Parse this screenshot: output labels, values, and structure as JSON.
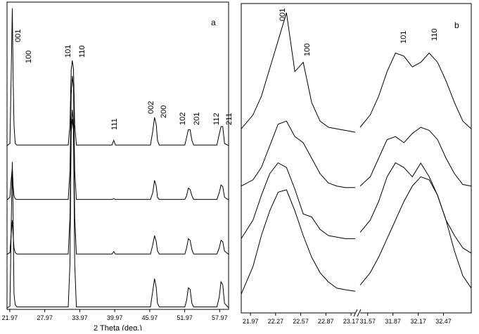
{
  "chart_data": [
    {
      "type": "line",
      "panel_label": "a",
      "xlabel": "2 Theta (deg.)",
      "xlim": [
        21.5,
        59.5
      ],
      "ylim": [
        0,
        100
      ],
      "xticks": [
        21.97,
        27.97,
        33.97,
        39.97,
        45.97,
        51.97,
        57.97
      ],
      "annotations": [
        "001",
        "100",
        "101",
        "110",
        "111",
        "002",
        "200",
        "102",
        "201",
        "112",
        "211"
      ],
      "x": [
        21.5,
        22.0,
        22.2,
        22.4,
        22.55,
        22.7,
        22.9,
        23.2,
        28.0,
        32.0,
        32.3,
        32.5,
        32.7,
        32.9,
        33.1,
        33.4,
        39.5,
        39.8,
        40.1,
        46.1,
        46.5,
        46.8,
        47.1,
        47.3,
        47.6,
        52.0,
        52.3,
        52.6,
        52.9,
        53.2,
        53.5,
        57.5,
        57.9,
        58.2,
        58.5,
        58.8,
        59.5
      ],
      "series": [
        {
          "color": "#000000",
          "values": [
            53.3,
            54,
            75,
            98,
            75,
            60,
            54,
            53.5,
            53.5,
            53.5,
            60,
            78,
            81,
            78,
            60,
            53.5,
            53.5,
            55,
            53.5,
            53.5,
            58,
            62.5,
            60,
            55,
            53.5,
            53.5,
            56,
            58.5,
            58.5,
            55,
            53.5,
            53.5,
            57,
            59.5,
            59.5,
            54,
            53.3
          ]
        },
        {
          "color": "#000000",
          "values": [
            35.6,
            36.5,
            42,
            46,
            40,
            37,
            36,
            35.8,
            35.8,
            35.8,
            45,
            70,
            76,
            72,
            45,
            35.8,
            35.8,
            36,
            35.8,
            35.8,
            38,
            42,
            40,
            36.5,
            35.8,
            35.8,
            37,
            39.5,
            39,
            37,
            35.8,
            35.8,
            38,
            40.5,
            40,
            36.5,
            35.6
          ]
        },
        {
          "color": "#000000",
          "values": [
            17.9,
            18.5,
            24,
            29,
            24,
            20,
            18.5,
            18,
            18,
            18,
            30,
            60,
            65,
            60,
            30,
            18,
            18,
            18.8,
            18,
            18,
            21,
            24,
            22,
            19,
            18,
            18,
            20,
            23,
            22.5,
            19.5,
            18,
            18,
            20,
            22.5,
            22,
            19,
            17.9
          ]
        },
        {
          "color": "#000000",
          "values": [
            0.5,
            1,
            25,
            48,
            30,
            5,
            1.5,
            0.8,
            0.8,
            0.8,
            15,
            58,
            62,
            58,
            15,
            0.8,
            0.8,
            0.8,
            0.8,
            0.8,
            6,
            10,
            7,
            2,
            0.8,
            0.8,
            3,
            7,
            6.5,
            2,
            0.8,
            0.8,
            4,
            9,
            8,
            2,
            0.5
          ]
        }
      ]
    },
    {
      "type": "line",
      "panel_label": "b",
      "xlim": [
        21.86,
        32.8
      ],
      "xbreak": [
        23.22,
        31.48
      ],
      "ylim": [
        0,
        100
      ],
      "xticks": [
        21.97,
        22.27,
        22.57,
        22.87,
        23.17,
        31.57,
        31.87,
        32.17,
        32.47
      ],
      "annotations": [
        "001",
        "100",
        "101",
        "110"
      ],
      "x": [
        21.86,
        22.0,
        22.1,
        22.2,
        22.3,
        22.4,
        22.5,
        22.6,
        22.7,
        22.8,
        22.9,
        23.0,
        23.1,
        23.22,
        27.0,
        31.48,
        31.6,
        31.7,
        31.8,
        31.9,
        32.0,
        32.1,
        32.2,
        32.3,
        32.4,
        32.5,
        32.6,
        32.7,
        32.8
      ],
      "series": [
        {
          "color": "#000000",
          "values": [
            59.5,
            64,
            70,
            79,
            88,
            97,
            78,
            81,
            68,
            62,
            60,
            59.5,
            59,
            58.4,
            null,
            60,
            64,
            70,
            78,
            84,
            83,
            79.5,
            81,
            84,
            81,
            75,
            68,
            62,
            59.5
          ]
        },
        {
          "color": "#000000",
          "values": [
            41,
            43,
            47,
            54,
            61,
            62,
            57,
            55,
            50,
            45,
            42,
            41,
            40.5,
            40.5,
            null,
            41,
            44,
            50,
            56,
            57,
            55,
            58,
            60,
            59,
            56,
            50,
            45,
            41.5,
            41
          ]
        },
        {
          "color": "#000000",
          "values": [
            24,
            30,
            38,
            45,
            48.5,
            47,
            40,
            32,
            31,
            27,
            25,
            24.5,
            24,
            24,
            null,
            26,
            30,
            36,
            44,
            48.5,
            47,
            44,
            48.4,
            44,
            38,
            30,
            25,
            21,
            19.3
          ]
        },
        {
          "color": "#000000",
          "values": [
            6.1,
            15,
            25,
            33,
            39,
            39.8,
            33,
            25,
            18,
            13,
            10,
            8,
            7.5,
            7,
            null,
            9,
            13,
            18,
            24,
            30,
            36,
            41,
            44,
            43,
            38,
            30,
            20,
            12,
            8
          ]
        }
      ]
    }
  ]
}
